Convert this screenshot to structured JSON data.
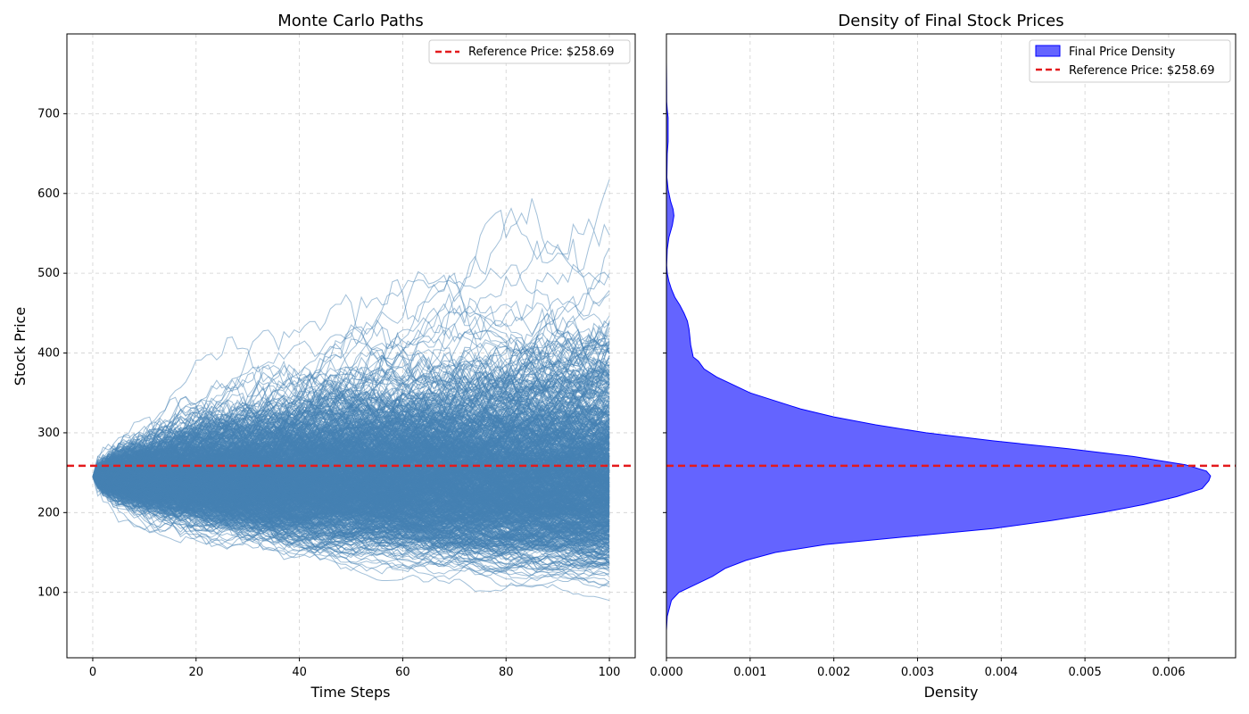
{
  "chart_data": [
    {
      "type": "line",
      "title": "Monte Carlo Paths",
      "xlabel": "Time Steps",
      "ylabel": "Stock Price",
      "xlim": [
        -5,
        105
      ],
      "ylim": [
        18,
        800
      ],
      "xticks": [
        0,
        20,
        40,
        60,
        80,
        100
      ],
      "yticks": [
        100,
        200,
        300,
        400,
        500,
        600,
        700
      ],
      "grid": true,
      "legend_position": "top-right",
      "start_value": 245,
      "steps": 100,
      "num_paths": 1000,
      "final_value_range": [
        103,
        715
      ],
      "path_color": "#4682b4",
      "reference_line": {
        "y": 258.69,
        "label": "Reference Price: $258.69",
        "color": "#e31a1c"
      }
    },
    {
      "type": "area",
      "title": "Density of Final Stock Prices",
      "xlabel": "Density",
      "ylabel": "",
      "xlim": [
        0,
        0.0068
      ],
      "ylim": [
        18,
        800
      ],
      "xticks": [
        "0.000",
        "0.001",
        "0.002",
        "0.003",
        "0.004",
        "0.005",
        "0.006"
      ],
      "xtick_values": [
        0,
        0.001,
        0.002,
        0.003,
        0.004,
        0.005,
        0.006
      ],
      "yticks": [
        100,
        200,
        300,
        400,
        500,
        600,
        700
      ],
      "grid": true,
      "legend_position": "top-right",
      "series": [
        {
          "name": "Final Price Density",
          "color": "#6464ff",
          "edge_color": "#0000ff",
          "points": [
            [
              52,
              0.0
            ],
            [
              70,
              1e-05
            ],
            [
              90,
              6e-05
            ],
            [
              100,
              0.00015
            ],
            [
              110,
              0.00035
            ],
            [
              120,
              0.00055
            ],
            [
              130,
              0.0007
            ],
            [
              140,
              0.00095
            ],
            [
              150,
              0.0013
            ],
            [
              160,
              0.0019
            ],
            [
              170,
              0.0029
            ],
            [
              180,
              0.0039
            ],
            [
              190,
              0.0046
            ],
            [
              200,
              0.0052
            ],
            [
              210,
              0.0057
            ],
            [
              220,
              0.0061
            ],
            [
              230,
              0.0064
            ],
            [
              240,
              0.00648
            ],
            [
              246,
              0.0065
            ],
            [
              252,
              0.00645
            ],
            [
              260,
              0.0062
            ],
            [
              270,
              0.0056
            ],
            [
              280,
              0.0048
            ],
            [
              290,
              0.0039
            ],
            [
              300,
              0.0031
            ],
            [
              310,
              0.0025
            ],
            [
              320,
              0.002
            ],
            [
              330,
              0.0016
            ],
            [
              340,
              0.0013
            ],
            [
              350,
              0.001
            ],
            [
              360,
              0.0008
            ],
            [
              370,
              0.0006
            ],
            [
              380,
              0.00045
            ],
            [
              390,
              0.00038
            ],
            [
              395,
              0.00032
            ],
            [
              400,
              0.00031
            ],
            [
              410,
              0.00029
            ],
            [
              420,
              0.00028
            ],
            [
              430,
              0.00027
            ],
            [
              440,
              0.00025
            ],
            [
              450,
              0.00021
            ],
            [
              460,
              0.00016
            ],
            [
              470,
              0.0001
            ],
            [
              480,
              6e-05
            ],
            [
              490,
              3e-05
            ],
            [
              500,
              1e-05
            ],
            [
              510,
              3e-06
            ],
            [
              530,
              1e-05
            ],
            [
              545,
              3e-05
            ],
            [
              560,
              7e-05
            ],
            [
              572,
              9e-05
            ],
            [
              580,
              8e-05
            ],
            [
              590,
              5e-05
            ],
            [
              605,
              2e-05
            ],
            [
              620,
              5e-06
            ],
            [
              650,
              1e-05
            ],
            [
              665,
              2e-05
            ],
            [
              680,
              2e-05
            ],
            [
              695,
              2e-05
            ],
            [
              705,
              1e-05
            ],
            [
              715,
              3e-06
            ],
            [
              740,
              2e-06
            ],
            [
              764,
              0.0
            ]
          ]
        }
      ],
      "reference_line": {
        "y": 258.69,
        "label": "Reference Price: $258.69",
        "color": "#e31a1c"
      }
    }
  ]
}
